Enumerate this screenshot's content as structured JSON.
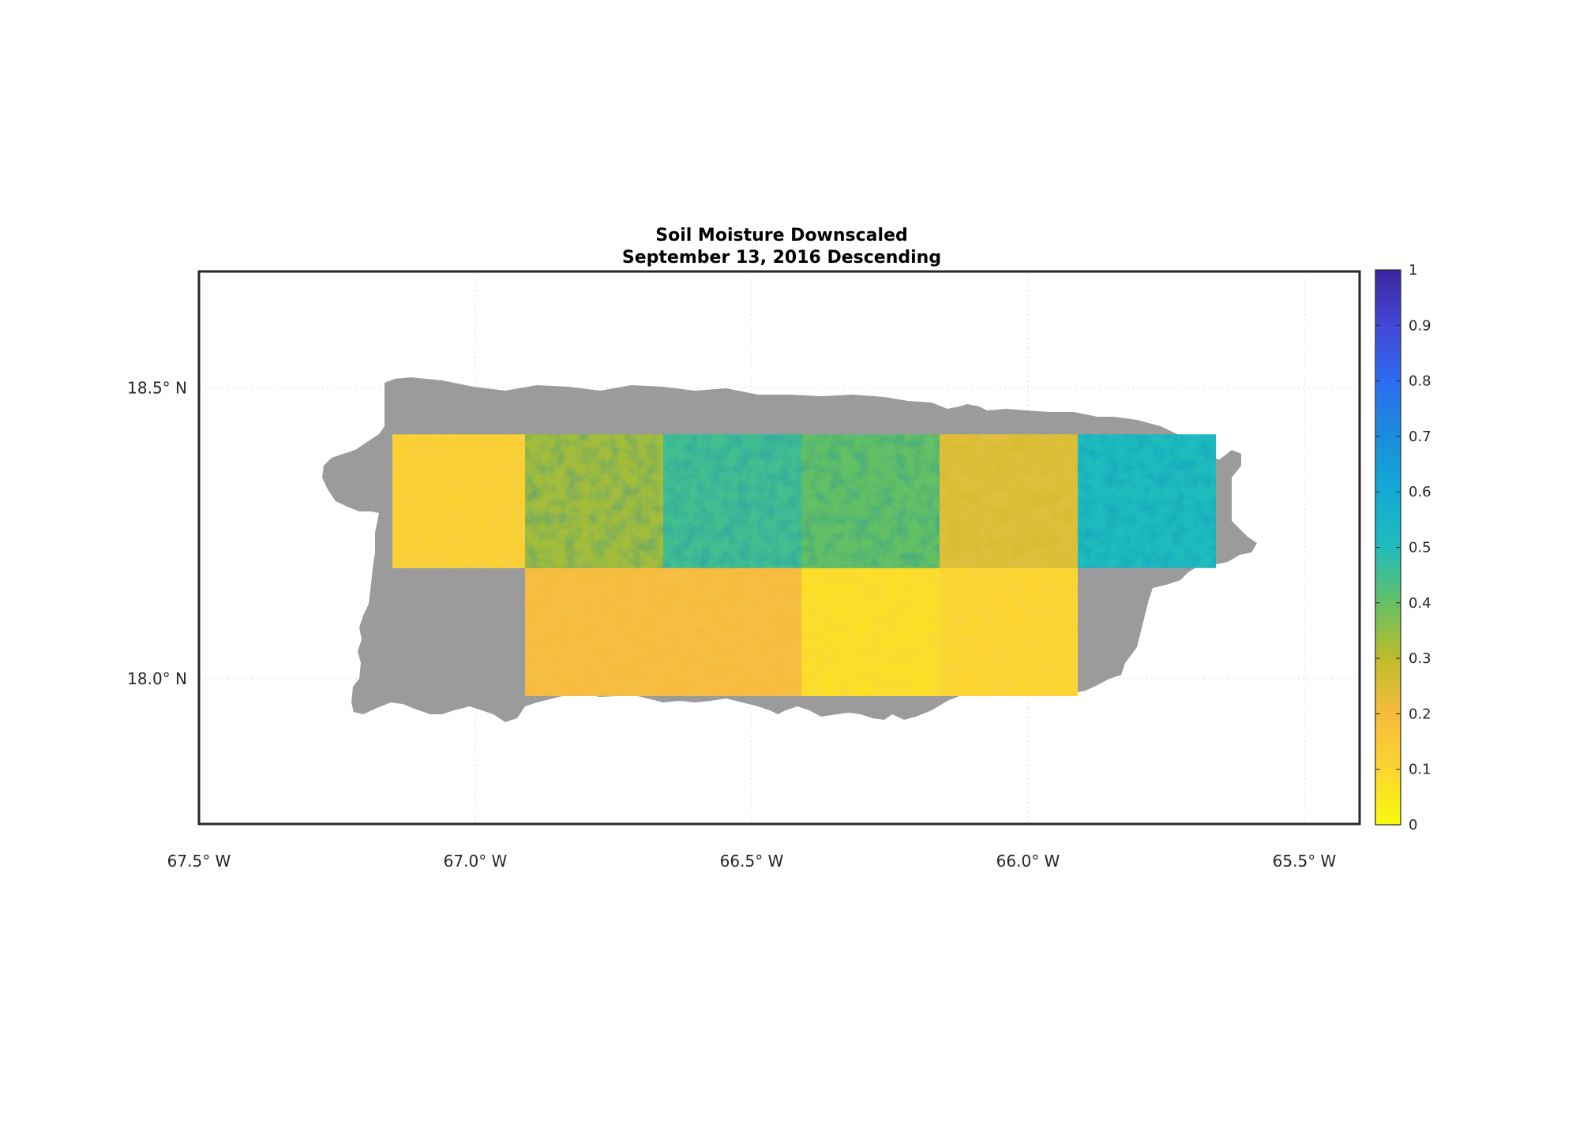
{
  "title": {
    "line1": "Soil Moisture Downscaled",
    "line2": "September 13, 2016 Descending"
  },
  "map": {
    "lon_range": [
      -67.5,
      -65.4
    ],
    "lat_range": [
      17.75,
      18.7
    ],
    "lon_ticks": [
      {
        "value": -67.5,
        "label": "67.5° W"
      },
      {
        "value": -67.0,
        "label": "67.0° W"
      },
      {
        "value": -66.5,
        "label": "66.5° W"
      },
      {
        "value": -66.0,
        "label": "66.0° W"
      },
      {
        "value": -65.5,
        "label": "65.5° W"
      }
    ],
    "lat_ticks": [
      {
        "value": 18.5,
        "label": "18.5° N"
      },
      {
        "value": 18.0,
        "label": "18.0° N"
      }
    ],
    "grid": true,
    "land_no_data_color": "#9b9b9b"
  },
  "colorbar": {
    "min": 0,
    "max": 1,
    "colormap": "parula",
    "ticks": [
      "0",
      "0.1",
      "0.2",
      "0.3",
      "0.4",
      "0.5",
      "0.6",
      "0.7",
      "0.8",
      "0.9",
      "1"
    ]
  },
  "data_tiles": [
    {
      "lon": [
        -67.15,
        -66.91
      ],
      "lat": [
        18.19,
        18.42
      ],
      "mean_value": 0.12
    },
    {
      "lon": [
        -66.91,
        -66.66
      ],
      "lat": [
        18.19,
        18.42
      ],
      "mean_value": 0.33
    },
    {
      "lon": [
        -66.66,
        -66.41
      ],
      "lat": [
        18.19,
        18.42
      ],
      "mean_value": 0.45
    },
    {
      "lon": [
        -66.41,
        -66.16
      ],
      "lat": [
        18.19,
        18.42
      ],
      "mean_value": 0.4
    },
    {
      "lon": [
        -66.16,
        -65.91
      ],
      "lat": [
        18.19,
        18.42
      ],
      "mean_value": 0.25
    },
    {
      "lon": [
        -65.91,
        -65.66
      ],
      "lat": [
        18.19,
        18.42
      ],
      "mean_value": 0.5
    },
    {
      "lon": [
        -66.91,
        -66.66
      ],
      "lat": [
        17.97,
        18.19
      ],
      "mean_value": 0.2
    },
    {
      "lon": [
        -66.66,
        -66.41
      ],
      "lat": [
        17.97,
        18.19
      ],
      "mean_value": 0.2
    },
    {
      "lon": [
        -66.41,
        -66.16
      ],
      "lat": [
        17.97,
        18.19
      ],
      "mean_value": 0.07
    },
    {
      "lon": [
        -66.16,
        -65.91
      ],
      "lat": [
        17.97,
        18.19
      ],
      "mean_value": 0.1
    }
  ]
}
